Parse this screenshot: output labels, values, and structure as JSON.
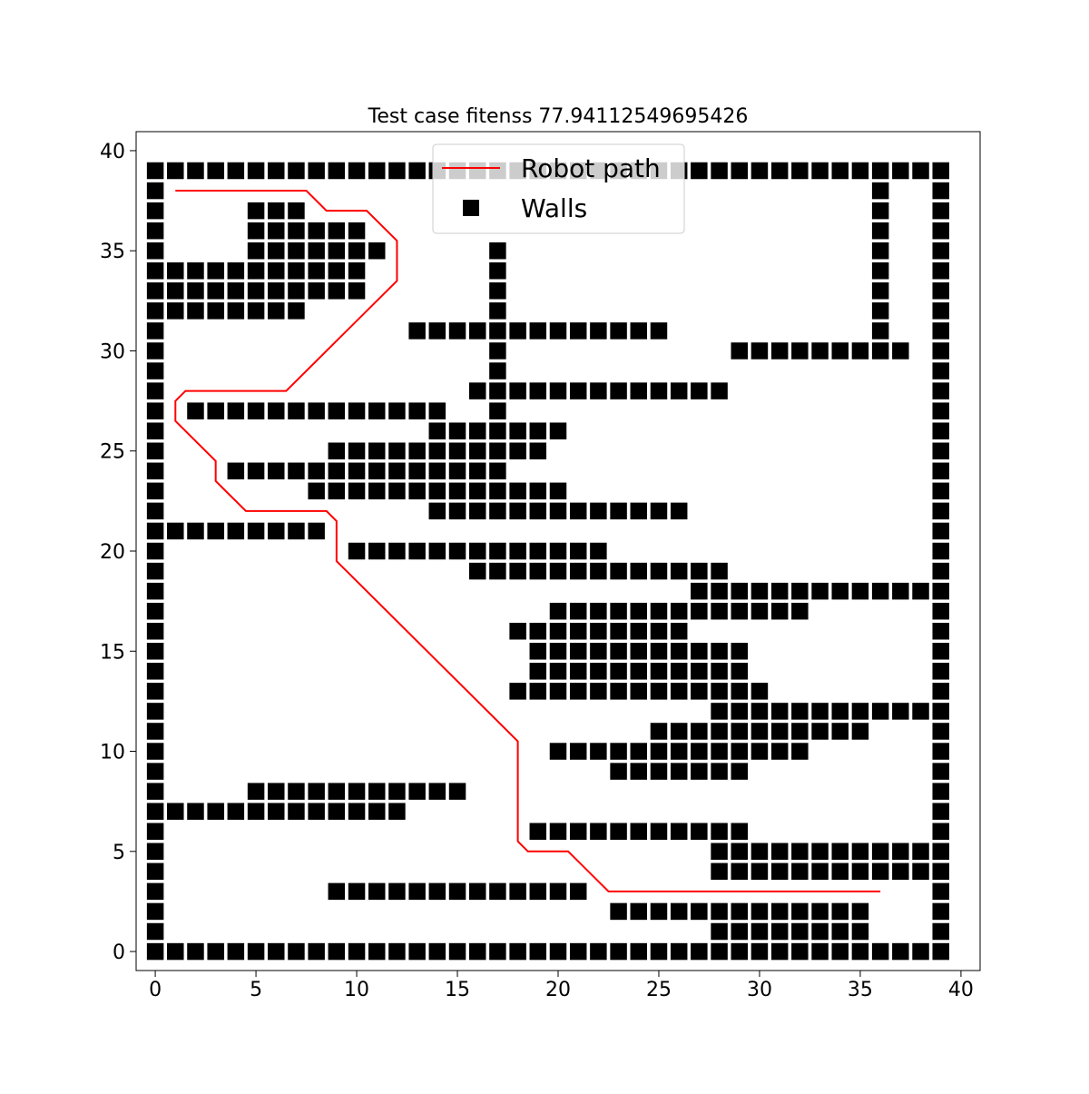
{
  "chart_data": {
    "type": "scatter",
    "title": "Test case fitenss 77.94112549695426",
    "xlabel": "",
    "ylabel": "",
    "xlim": [
      -0.95,
      40.95
    ],
    "ylim": [
      -0.95,
      40.95
    ],
    "xticks": [
      0,
      5,
      10,
      15,
      20,
      25,
      30,
      35,
      40
    ],
    "yticks": [
      0,
      5,
      10,
      15,
      20,
      25,
      30,
      35,
      40
    ],
    "xtick_labels": [
      "0",
      "5",
      "10",
      "15",
      "20",
      "25",
      "30",
      "35",
      "40"
    ],
    "ytick_labels": [
      "0",
      "5",
      "10",
      "15",
      "20",
      "25",
      "30",
      "35",
      "40"
    ],
    "grid": false,
    "legend": {
      "placement": "upper-center",
      "entries": [
        {
          "label": "Robot path",
          "kind": "line",
          "color": "#ff0000"
        },
        {
          "label": "Walls",
          "kind": "square-marker",
          "color": "#000000"
        }
      ]
    },
    "series": [
      {
        "name": "Robot path",
        "kind": "line",
        "color": "#ff0000",
        "points": [
          [
            1,
            38
          ],
          [
            7.5,
            38
          ],
          [
            8.5,
            37
          ],
          [
            10.5,
            37
          ],
          [
            12,
            35.5
          ],
          [
            12,
            33.5
          ],
          [
            6.5,
            28
          ],
          [
            1.5,
            28
          ],
          [
            1,
            27.5
          ],
          [
            1,
            26.5
          ],
          [
            3,
            24.5
          ],
          [
            3,
            23.5
          ],
          [
            4.5,
            22
          ],
          [
            8.5,
            22
          ],
          [
            9,
            21.5
          ],
          [
            9,
            19.5
          ],
          [
            18,
            10.5
          ],
          [
            18,
            5.5
          ],
          [
            18.5,
            5
          ],
          [
            20.5,
            5
          ],
          [
            22.5,
            3
          ],
          [
            36,
            3
          ]
        ]
      },
      {
        "name": "Walls",
        "kind": "markers",
        "marker": "square",
        "color": "#000000",
        "rows": [
          {
            "y": 39,
            "x_ranges": [
              [
                0,
                39
              ]
            ]
          },
          {
            "y": 38,
            "x_ranges": [
              [
                0,
                0
              ],
              [
                36,
                36
              ],
              [
                39,
                39
              ]
            ]
          },
          {
            "y": 37,
            "x_ranges": [
              [
                0,
                0
              ],
              [
                5,
                7
              ],
              [
                36,
                36
              ],
              [
                39,
                39
              ]
            ]
          },
          {
            "y": 36,
            "x_ranges": [
              [
                0,
                0
              ],
              [
                5,
                10
              ],
              [
                36,
                36
              ],
              [
                39,
                39
              ]
            ]
          },
          {
            "y": 35,
            "x_ranges": [
              [
                0,
                0
              ],
              [
                5,
                11
              ],
              [
                17,
                17
              ],
              [
                36,
                36
              ],
              [
                39,
                39
              ]
            ]
          },
          {
            "y": 34,
            "x_ranges": [
              [
                0,
                10
              ],
              [
                17,
                17
              ],
              [
                36,
                36
              ],
              [
                39,
                39
              ]
            ]
          },
          {
            "y": 33,
            "x_ranges": [
              [
                0,
                10
              ],
              [
                17,
                17
              ],
              [
                36,
                36
              ],
              [
                39,
                39
              ]
            ]
          },
          {
            "y": 32,
            "x_ranges": [
              [
                0,
                7
              ],
              [
                17,
                17
              ],
              [
                36,
                36
              ],
              [
                39,
                39
              ]
            ]
          },
          {
            "y": 31,
            "x_ranges": [
              [
                0,
                0
              ],
              [
                13,
                25
              ],
              [
                36,
                36
              ],
              [
                39,
                39
              ]
            ]
          },
          {
            "y": 30,
            "x_ranges": [
              [
                0,
                0
              ],
              [
                17,
                17
              ],
              [
                29,
                37
              ],
              [
                39,
                39
              ]
            ]
          },
          {
            "y": 29,
            "x_ranges": [
              [
                0,
                0
              ],
              [
                17,
                17
              ],
              [
                39,
                39
              ]
            ]
          },
          {
            "y": 28,
            "x_ranges": [
              [
                0,
                0
              ],
              [
                16,
                28
              ],
              [
                39,
                39
              ]
            ]
          },
          {
            "y": 27,
            "x_ranges": [
              [
                0,
                0
              ],
              [
                2,
                14
              ],
              [
                17,
                17
              ],
              [
                39,
                39
              ]
            ]
          },
          {
            "y": 26,
            "x_ranges": [
              [
                0,
                0
              ],
              [
                14,
                20
              ],
              [
                39,
                39
              ]
            ]
          },
          {
            "y": 25,
            "x_ranges": [
              [
                0,
                0
              ],
              [
                9,
                19
              ],
              [
                39,
                39
              ]
            ]
          },
          {
            "y": 24,
            "x_ranges": [
              [
                0,
                0
              ],
              [
                4,
                17
              ],
              [
                39,
                39
              ]
            ]
          },
          {
            "y": 23,
            "x_ranges": [
              [
                0,
                0
              ],
              [
                8,
                20
              ],
              [
                39,
                39
              ]
            ]
          },
          {
            "y": 22,
            "x_ranges": [
              [
                0,
                0
              ],
              [
                14,
                26
              ],
              [
                39,
                39
              ]
            ]
          },
          {
            "y": 21,
            "x_ranges": [
              [
                0,
                8
              ],
              [
                39,
                39
              ]
            ]
          },
          {
            "y": 20,
            "x_ranges": [
              [
                0,
                0
              ],
              [
                10,
                22
              ],
              [
                39,
                39
              ]
            ]
          },
          {
            "y": 19,
            "x_ranges": [
              [
                0,
                0
              ],
              [
                16,
                28
              ],
              [
                39,
                39
              ]
            ]
          },
          {
            "y": 18,
            "x_ranges": [
              [
                0,
                0
              ],
              [
                27,
                39
              ]
            ]
          },
          {
            "y": 17,
            "x_ranges": [
              [
                0,
                0
              ],
              [
                20,
                32
              ],
              [
                39,
                39
              ]
            ]
          },
          {
            "y": 16,
            "x_ranges": [
              [
                0,
                0
              ],
              [
                18,
                26
              ],
              [
                39,
                39
              ]
            ]
          },
          {
            "y": 15,
            "x_ranges": [
              [
                0,
                0
              ],
              [
                19,
                29
              ],
              [
                39,
                39
              ]
            ]
          },
          {
            "y": 14,
            "x_ranges": [
              [
                0,
                0
              ],
              [
                19,
                29
              ],
              [
                39,
                39
              ]
            ]
          },
          {
            "y": 13,
            "x_ranges": [
              [
                0,
                0
              ],
              [
                18,
                30
              ],
              [
                39,
                39
              ]
            ]
          },
          {
            "y": 12,
            "x_ranges": [
              [
                0,
                0
              ],
              [
                28,
                39
              ]
            ]
          },
          {
            "y": 11,
            "x_ranges": [
              [
                0,
                0
              ],
              [
                25,
                35
              ],
              [
                39,
                39
              ]
            ]
          },
          {
            "y": 10,
            "x_ranges": [
              [
                0,
                0
              ],
              [
                20,
                32
              ],
              [
                39,
                39
              ]
            ]
          },
          {
            "y": 9,
            "x_ranges": [
              [
                0,
                0
              ],
              [
                23,
                29
              ],
              [
                39,
                39
              ]
            ]
          },
          {
            "y": 8,
            "x_ranges": [
              [
                0,
                0
              ],
              [
                5,
                15
              ],
              [
                39,
                39
              ]
            ]
          },
          {
            "y": 7,
            "x_ranges": [
              [
                0,
                12
              ],
              [
                39,
                39
              ]
            ]
          },
          {
            "y": 6,
            "x_ranges": [
              [
                0,
                0
              ],
              [
                19,
                29
              ],
              [
                39,
                39
              ]
            ]
          },
          {
            "y": 5,
            "x_ranges": [
              [
                0,
                0
              ],
              [
                28,
                39
              ]
            ]
          },
          {
            "y": 4,
            "x_ranges": [
              [
                0,
                0
              ],
              [
                28,
                39
              ]
            ]
          },
          {
            "y": 3,
            "x_ranges": [
              [
                0,
                0
              ],
              [
                9,
                21
              ],
              [
                39,
                39
              ]
            ]
          },
          {
            "y": 2,
            "x_ranges": [
              [
                0,
                0
              ],
              [
                23,
                35
              ],
              [
                39,
                39
              ]
            ]
          },
          {
            "y": 1,
            "x_ranges": [
              [
                0,
                0
              ],
              [
                28,
                35
              ],
              [
                39,
                39
              ]
            ]
          },
          {
            "y": 0,
            "x_ranges": [
              [
                0,
                39
              ]
            ]
          }
        ]
      }
    ]
  }
}
